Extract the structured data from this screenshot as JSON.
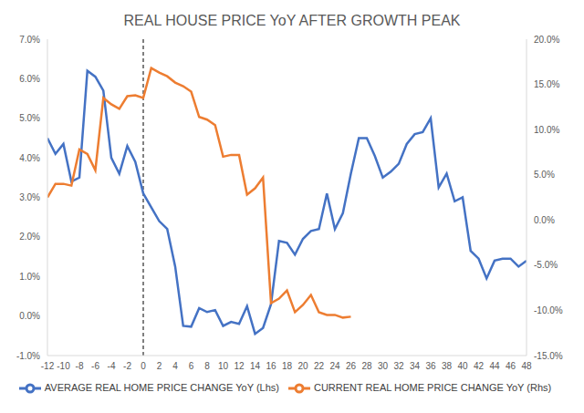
{
  "chart_data": {
    "type": "line",
    "title": "REAL HOUSE PRICE YoY AFTER GROWTH PEAK",
    "xlim": [
      -12,
      48
    ],
    "xticks": [
      -12,
      -10,
      -8,
      -6,
      -4,
      -2,
      0,
      2,
      4,
      6,
      8,
      10,
      12,
      14,
      16,
      18,
      20,
      22,
      24,
      26,
      28,
      30,
      32,
      34,
      36,
      38,
      40,
      42,
      44,
      46,
      48
    ],
    "ylim": [
      -1,
      7
    ],
    "yticks": [
      {
        "value": -1,
        "label": "-1.0%"
      },
      {
        "value": 0,
        "label": "0.0%"
      },
      {
        "value": 1,
        "label": "1.0%"
      },
      {
        "value": 2,
        "label": "2.0%"
      },
      {
        "value": 3,
        "label": "3.0%"
      },
      {
        "value": 4,
        "label": "4.0%"
      },
      {
        "value": 5,
        "label": "5.0%"
      },
      {
        "value": 6,
        "label": "6.0%"
      },
      {
        "value": 7,
        "label": "7.0%"
      }
    ],
    "y2lim": [
      -15,
      20
    ],
    "y2ticks": [
      {
        "value": -15,
        "label": "-15.0%"
      },
      {
        "value": -10,
        "label": "-10.0%"
      },
      {
        "value": -5,
        "label": "-5.0%"
      },
      {
        "value": 0,
        "label": "0.0%"
      },
      {
        "value": 5,
        "label": "5.0%"
      },
      {
        "value": 10,
        "label": "10.0%"
      },
      {
        "value": 15,
        "label": "15.0%"
      },
      {
        "value": 20,
        "label": "20.0%"
      }
    ],
    "vline": 0,
    "grid": false,
    "legend": "bottom",
    "series": [
      {
        "name": "AVERAGE REAL HOME PRICE CHANGE YoY (Lhs)",
        "color": "#4472c4",
        "axis": "y",
        "x": [
          -12,
          -11,
          -10,
          -9,
          -8,
          -7,
          -6,
          -5,
          -4,
          -3,
          -2,
          -1,
          0,
          1,
          2,
          3,
          4,
          5,
          6,
          7,
          8,
          9,
          10,
          11,
          12,
          13,
          14,
          15,
          16,
          17,
          18,
          19,
          20,
          21,
          22,
          23,
          24,
          25,
          26,
          27,
          28,
          29,
          30,
          31,
          32,
          33,
          34,
          35,
          36,
          37,
          38,
          39,
          40,
          41,
          42,
          43,
          44,
          45,
          46,
          47,
          48
        ],
        "values": [
          4.5,
          4.1,
          4.35,
          3.4,
          3.5,
          6.2,
          6.05,
          5.7,
          4.0,
          3.6,
          4.3,
          3.9,
          3.1,
          2.75,
          2.4,
          2.2,
          1.25,
          -0.25,
          -0.27,
          0.2,
          0.1,
          0.15,
          -0.25,
          -0.15,
          -0.2,
          0.25,
          -0.45,
          -0.3,
          0.3,
          1.9,
          1.85,
          1.55,
          1.95,
          2.15,
          2.2,
          3.1,
          2.2,
          2.6,
          3.6,
          4.5,
          4.5,
          4.05,
          3.5,
          3.65,
          3.85,
          4.35,
          4.6,
          4.65,
          5.0,
          3.25,
          3.6,
          2.9,
          3.0,
          1.65,
          1.45,
          0.95,
          1.4,
          1.45,
          1.45,
          1.25,
          1.4
        ]
      },
      {
        "name": "CURRENT REAL HOME PRICE CHANGE YoY (Rhs)",
        "color": "#ed7d31",
        "axis": "y2",
        "x": [
          -12,
          -11,
          -10,
          -9,
          -8,
          -7,
          -6,
          -5,
          -4,
          -3,
          -2,
          -1,
          0,
          1,
          2,
          3,
          4,
          5,
          6,
          7,
          8,
          9,
          10,
          11,
          12,
          13,
          14,
          15,
          16,
          17,
          18,
          19,
          20,
          21,
          22,
          23,
          24,
          25,
          26
        ],
        "values": [
          2.5,
          4.0,
          4.0,
          3.8,
          7.8,
          7.3,
          5.5,
          13.5,
          12.8,
          12.3,
          13.7,
          13.8,
          13.5,
          16.8,
          16.3,
          15.9,
          15.2,
          14.8,
          14.2,
          11.4,
          11.1,
          10.5,
          7.0,
          7.2,
          7.2,
          2.8,
          3.5,
          4.7,
          -9.2,
          -8.7,
          -7.8,
          -10.2,
          -9.4,
          -8.3,
          -10.2,
          -10.5,
          -10.5,
          -10.8,
          -10.7
        ]
      }
    ]
  }
}
